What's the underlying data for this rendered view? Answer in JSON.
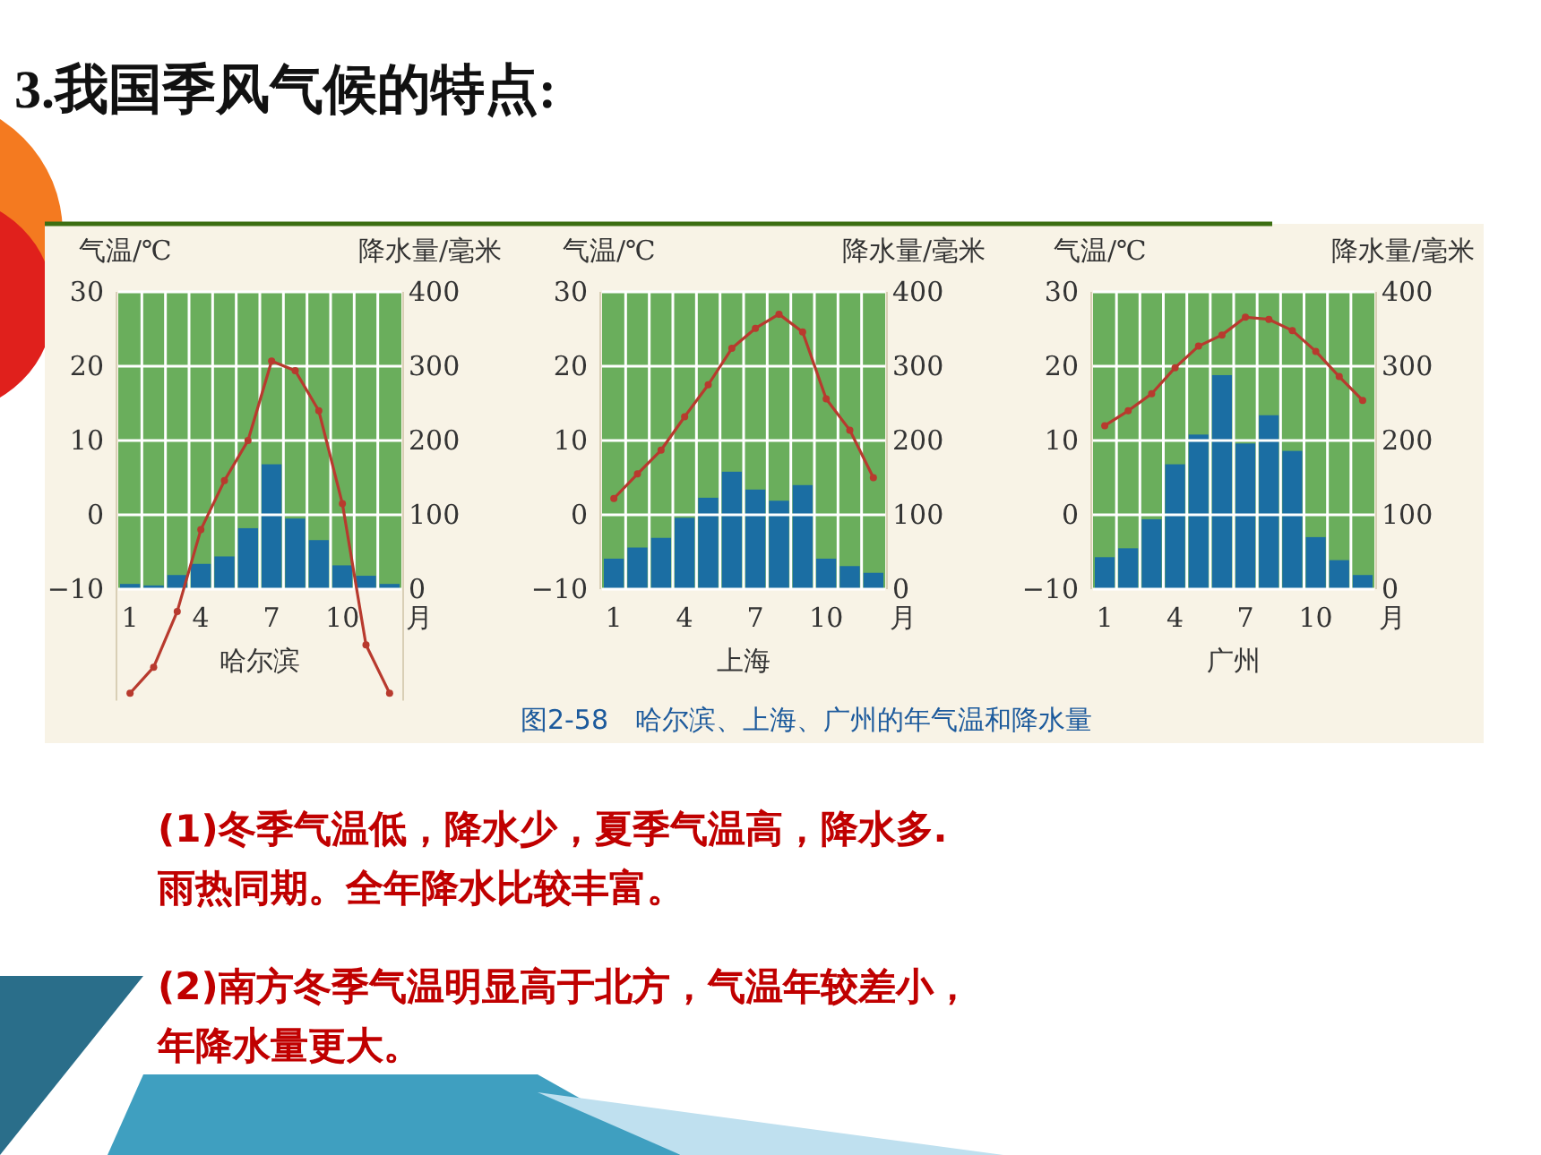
{
  "chart_data": [
    {
      "type": "bar",
      "title": "哈尔滨",
      "ylabel": "气温/℃",
      "y2label": "降水量/毫米",
      "xlabel": "月",
      "categories": [
        "1",
        null,
        null,
        "4",
        null,
        null,
        "7",
        null,
        null,
        "10",
        null,
        null
      ],
      "series": [
        {
          "type": "bar",
          "axis": "y2",
          "color": "#1b6ea3",
          "values": [
            7,
            5,
            19,
            34,
            44,
            82,
            168,
            95,
            66,
            32,
            18,
            7
          ]
        },
        {
          "type": "line",
          "axis": "y",
          "color": "#b83a2e",
          "values": [
            -24,
            -20.5,
            -13,
            -2,
            4.6,
            10,
            20.7,
            19.4,
            14,
            1.5,
            -17.5,
            -24
          ]
        }
      ],
      "ylim": [
        -25,
        30
      ],
      "yticks": [
        -10,
        0,
        10,
        20,
        30
      ],
      "y2lim": [
        -150,
        400
      ],
      "y2ticks": [
        0,
        100,
        200,
        300,
        400
      ],
      "grid": true,
      "marker": "circle"
    },
    {
      "type": "bar",
      "title": "上海",
      "ylabel": "气温/℃",
      "y2label": "降水量/毫米",
      "xlabel": "月",
      "categories": [
        "1",
        null,
        null,
        "4",
        null,
        null,
        "7",
        null,
        null,
        "10",
        null,
        null
      ],
      "series": [
        {
          "type": "bar",
          "axis": "y2",
          "color": "#1b6ea3",
          "values": [
            41,
            56,
            69,
            96,
            123,
            158,
            134,
            119,
            140,
            41,
            31,
            22
          ]
        },
        {
          "type": "line",
          "axis": "y",
          "color": "#b83a2e",
          "values": [
            2.2,
            5.5,
            8.7,
            13.2,
            17.5,
            22.4,
            25.1,
            27,
            24.6,
            15.6,
            11.4,
            5
          ]
        }
      ],
      "ylim": [
        -10,
        30
      ],
      "yticks": [
        -10,
        0,
        10,
        20,
        30
      ],
      "y2lim": [
        0,
        400
      ],
      "y2ticks": [
        0,
        100,
        200,
        300,
        400
      ],
      "grid": true,
      "marker": "circle"
    },
    {
      "type": "bar",
      "title": "广州",
      "ylabel": "气温/℃",
      "y2label": "降水量/毫米",
      "xlabel": "月",
      "categories": [
        "1",
        null,
        null,
        "4",
        null,
        null,
        "7",
        null,
        null,
        "10",
        null,
        null
      ],
      "series": [
        {
          "type": "bar",
          "axis": "y2",
          "color": "#1b6ea3",
          "values": [
            43,
            55,
            94,
            168,
            208,
            288,
            196,
            234,
            186,
            70,
            39,
            19
          ]
        },
        {
          "type": "line",
          "axis": "y",
          "color": "#b83a2e",
          "values": [
            12,
            14,
            16.3,
            19.8,
            22.7,
            24.2,
            26.6,
            26.3,
            24.8,
            22,
            18.6,
            15.4
          ]
        }
      ],
      "ylim": [
        -10,
        30
      ],
      "yticks": [
        -10,
        0,
        10,
        20,
        30
      ],
      "y2lim": [
        0,
        400
      ],
      "y2ticks": [
        0,
        100,
        200,
        300,
        400
      ],
      "grid": true,
      "marker": "circle"
    },
    {
      "type": "other",
      "title": "3.我国季风气候的特点:",
      "annotations": [
        "图2-58　哈尔滨、上海、广州的年气温和降水量",
        "(1)冬季气温低，降水少，夏季气温高，降水多.",
        "雨热同期。全年降水比较丰富。",
        "(2)南方冬季气温明显高于北方，气温年较差小，",
        "年降水量更大。"
      ]
    }
  ]
}
